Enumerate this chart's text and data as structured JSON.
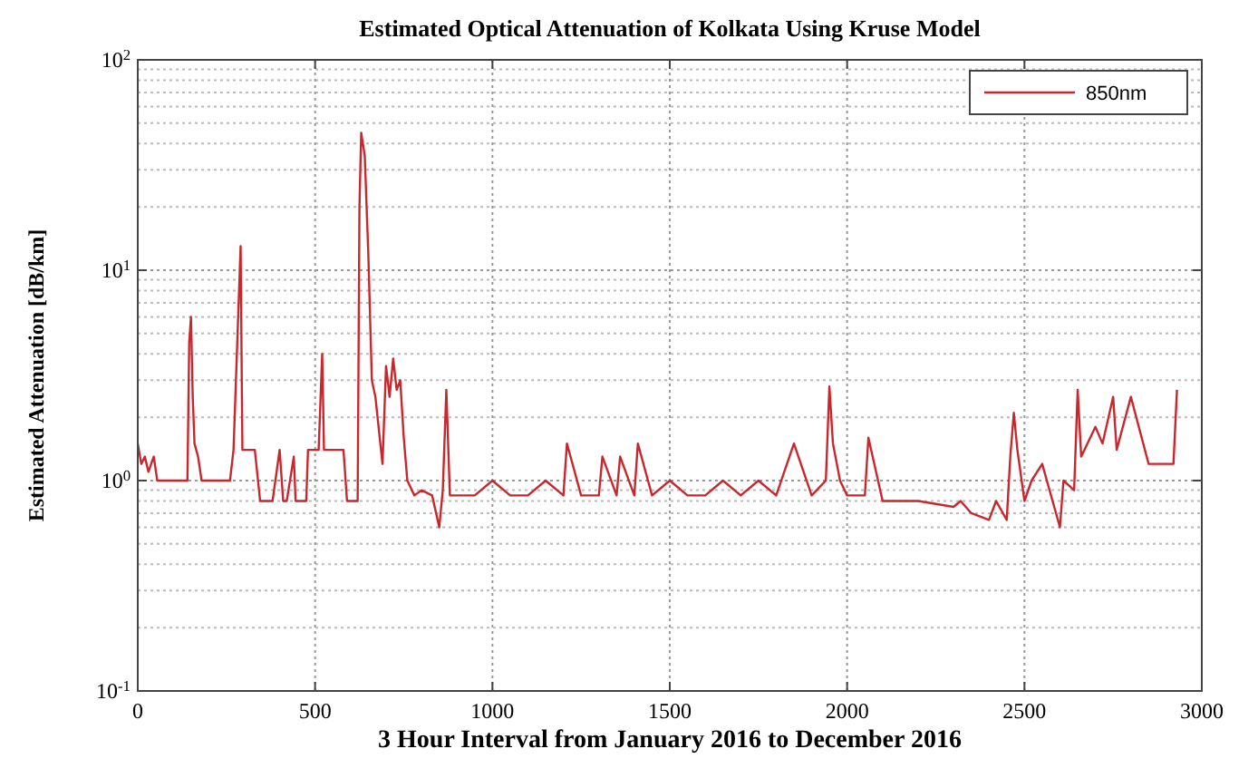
{
  "chart_data": {
    "type": "line",
    "title": "Estimated Optical Attenuation of Kolkata Using Kruse Model",
    "xlabel": "3 Hour Interval from January 2016 to December 2016",
    "ylabel": "Estimated Attenuation [dB/km]",
    "xlim": [
      0,
      3000
    ],
    "xticks": [
      0,
      500,
      1000,
      1500,
      2000,
      2500,
      3000
    ],
    "ylim": [
      0.1,
      100
    ],
    "yticks": [
      {
        "value": 0.1,
        "label": "10$^{-1}$"
      },
      {
        "value": 1,
        "label": "10$^{0}$"
      },
      {
        "value": 10,
        "label": "10$^{1}$"
      },
      {
        "value": 100,
        "label": "10$^{2}$"
      }
    ],
    "log": "y",
    "grid": true,
    "legend": "top right",
    "line_style": "solid",
    "marker": "none",
    "series": [
      {
        "name": "850nm",
        "color": "#c8282d",
        "x": [
          0,
          10,
          20,
          30,
          45,
          55,
          60,
          140,
          145,
          150,
          155,
          160,
          170,
          180,
          190,
          260,
          270,
          290,
          295,
          305,
          330,
          345,
          360,
          380,
          400,
          410,
          420,
          440,
          445,
          460,
          475,
          480,
          510,
          520,
          525,
          540,
          580,
          590,
          600,
          620,
          625,
          630,
          640,
          650,
          660,
          670,
          690,
          700,
          710,
          720,
          730,
          740,
          750,
          760,
          780,
          800,
          830,
          850,
          860,
          870,
          880,
          900,
          950,
          1000,
          1050,
          1100,
          1150,
          1200,
          1210,
          1250,
          1300,
          1310,
          1350,
          1360,
          1400,
          1410,
          1450,
          1500,
          1550,
          1600,
          1650,
          1700,
          1750,
          1800,
          1850,
          1900,
          1940,
          1950,
          1960,
          1980,
          2000,
          2050,
          2060,
          2100,
          2200,
          2300,
          2320,
          2350,
          2400,
          2420,
          2450,
          2460,
          2470,
          2480,
          2500,
          2520,
          2550,
          2600,
          2610,
          2640,
          2650,
          2660,
          2700,
          2720,
          2750,
          2760,
          2800,
          2850,
          2900,
          2920,
          2930
        ],
        "values": [
          1.5,
          1.2,
          1.3,
          1.1,
          1.3,
          1.0,
          1.0,
          1.0,
          4.5,
          6,
          2.5,
          1.5,
          1.3,
          1.0,
          1.0,
          1.0,
          1.4,
          13,
          1.4,
          1.4,
          1.4,
          0.8,
          0.8,
          0.8,
          1.4,
          0.8,
          0.8,
          1.3,
          0.8,
          0.8,
          0.8,
          1.4,
          1.4,
          4,
          1.4,
          1.4,
          1.4,
          0.8,
          0.8,
          0.8,
          20,
          45,
          35,
          12,
          3,
          2.5,
          1.2,
          3.5,
          2.5,
          3.8,
          2.7,
          3,
          1.6,
          1.0,
          0.85,
          0.9,
          0.85,
          0.6,
          0.9,
          2.7,
          0.85,
          0.85,
          0.85,
          1.0,
          0.85,
          0.85,
          1.0,
          0.85,
          1.5,
          0.85,
          0.85,
          1.3,
          0.85,
          1.3,
          0.85,
          1.5,
          0.85,
          1.0,
          0.85,
          0.85,
          1.0,
          0.85,
          1.0,
          0.85,
          1.5,
          0.85,
          1.0,
          2.8,
          1.5,
          1.0,
          0.85,
          0.85,
          1.6,
          0.8,
          0.8,
          0.75,
          0.8,
          0.7,
          0.65,
          0.8,
          0.65,
          1.3,
          2.1,
          1.4,
          0.8,
          1.0,
          1.2,
          0.6,
          1.0,
          0.9,
          2.7,
          1.3,
          1.8,
          1.5,
          2.5,
          1.4,
          2.5,
          1.2,
          1.2,
          1.2,
          2.7
        ]
      }
    ]
  }
}
